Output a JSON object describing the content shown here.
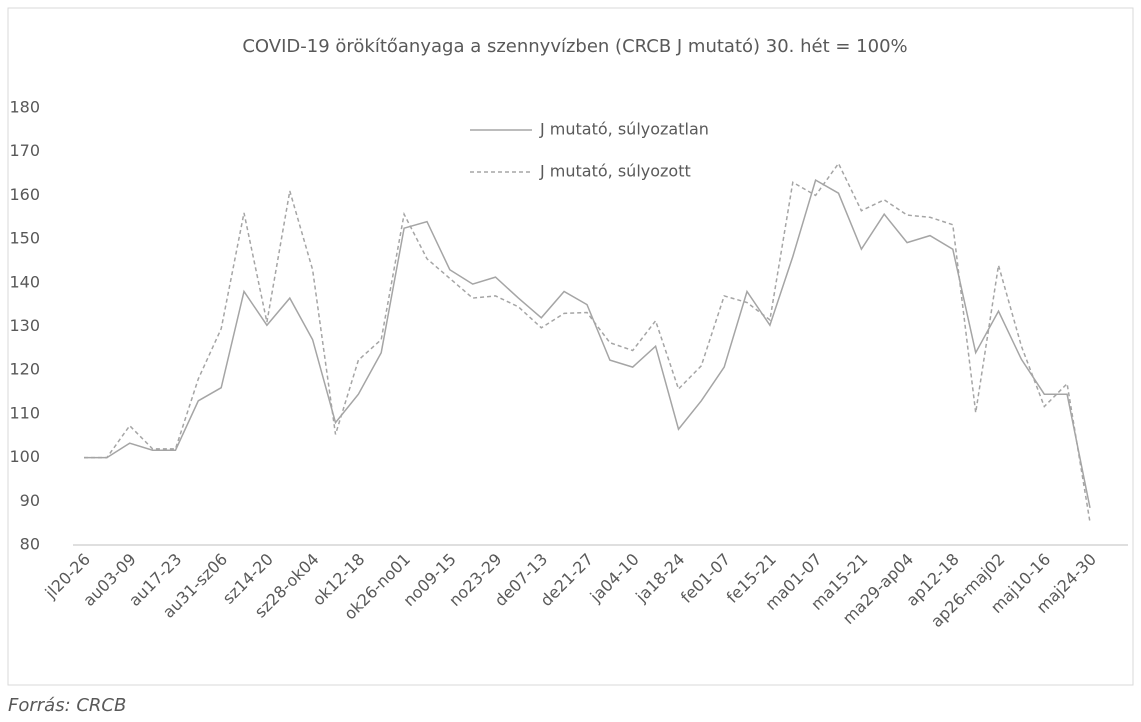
{
  "chart_data": {
    "type": "line",
    "title": "COVID-19 örökítőanyaga a szennyvízben (CRCB J mutató) 30. hét = 100%",
    "source": "Forrás: CRCB",
    "categories": [
      "jl20-26",
      null,
      "au03-09",
      null,
      "au17-23",
      null,
      "au31-sz06",
      null,
      "sz14-20",
      null,
      "sz28-ok04",
      null,
      "ok12-18",
      null,
      "ok26-no01",
      null,
      "no09-15",
      null,
      "no23-29",
      null,
      "de07-13",
      null,
      "de21-27",
      null,
      "ja04-10",
      null,
      "ja18-24",
      null,
      "fe01-07",
      null,
      "fe15-21",
      null,
      "ma01-07",
      null,
      "ma15-21",
      null,
      "ma29-ap04",
      null,
      "ap12-18",
      null,
      "ap26-maj02",
      null,
      "maj10-16",
      null,
      "maj24-30"
    ],
    "series": [
      {
        "name": "J mutató, súlyozatlan",
        "color": "#a5a5a5",
        "dash": "solid",
        "values": [
          100,
          100,
          103.3,
          101.7,
          101.7,
          113,
          116,
          138,
          130.3,
          136.5,
          127,
          108,
          114.5,
          124,
          152.5,
          154,
          143,
          139.7,
          141.3,
          136.5,
          132,
          138,
          135,
          122.3,
          120.7,
          125.5,
          106.5,
          113,
          120.7,
          138,
          130.3,
          146,
          163.5,
          160.5,
          147.7,
          155.7,
          149.2,
          150.8,
          147.7,
          124,
          133.5,
          122.5,
          114.5,
          114.5,
          88.5
        ]
      },
      {
        "name": "J mutató, súlyozott",
        "color": "#a5a5a5",
        "dash": "dashed",
        "values": [
          100,
          100,
          107.3,
          102,
          102,
          118,
          129.5,
          156,
          131,
          161,
          143,
          105.3,
          122.3,
          127,
          155.7,
          145.5,
          141,
          136.5,
          137,
          134.5,
          129.7,
          133,
          133.2,
          126.3,
          124.5,
          131.3,
          115.7,
          121,
          137,
          135.5,
          131.5,
          163,
          160,
          167.3,
          156.5,
          159,
          155.5,
          155,
          153.3,
          110.3,
          144,
          125.5,
          111.7,
          116.9,
          85.2
        ]
      }
    ],
    "ylim": [
      80,
      180
    ],
    "yticks": [
      80,
      90,
      100,
      110,
      120,
      130,
      140,
      150,
      160,
      170,
      180
    ],
    "grid": false
  }
}
